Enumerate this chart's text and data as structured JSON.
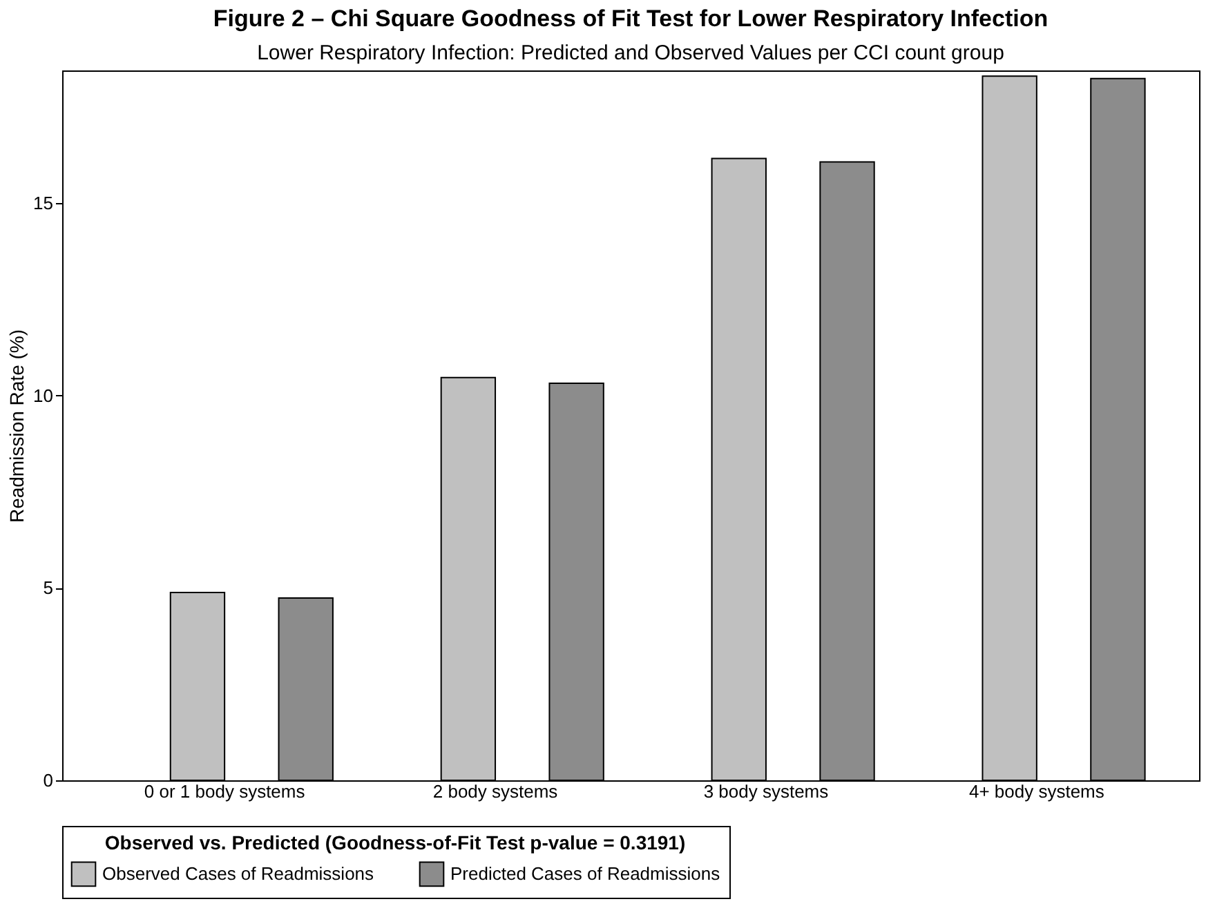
{
  "chart_data": {
    "type": "bar",
    "title": "Figure 2 – Chi Square Goodness of Fit Test for Lower Respiratory Infection",
    "subtitle": "Lower Respiratory Infection: Predicted and Observed Values per CCI count group",
    "ylabel": "Readmission Rate (%)",
    "legend_title": "Observed vs. Predicted (Goodness-of-Fit Test p-value = 0.3191)",
    "categories": [
      "0 or 1 body systems",
      "2 body systems",
      "3 body systems",
      "4+ body systems"
    ],
    "series": [
      {
        "name": "Observed Cases of Readmissions",
        "color": "#c0c0c0",
        "values": [
          4.88,
          10.47,
          16.16,
          18.3
        ]
      },
      {
        "name": "Predicted Cases of Readmissions",
        "color": "#8c8c8c",
        "values": [
          4.74,
          10.32,
          16.07,
          18.24
        ]
      }
    ],
    "ylim": [
      0,
      18.45
    ],
    "yticks": [
      0,
      5,
      10,
      15
    ],
    "grid": false,
    "legend": "bottom"
  }
}
